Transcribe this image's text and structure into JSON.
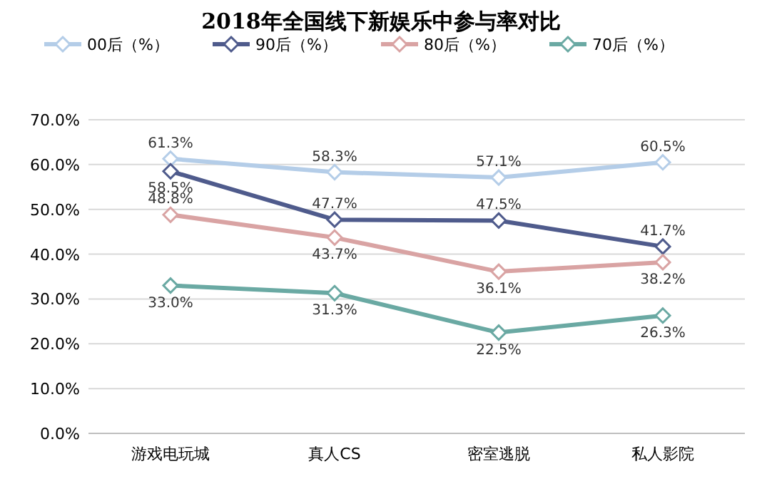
{
  "chart_data": {
    "type": "line",
    "title": "2018年全国线下新娱乐中参与率对比",
    "categories": [
      "游戏电玩城",
      "真人CS",
      "密室逃脱",
      "私人影院"
    ],
    "series": [
      {
        "name": "00后（%）",
        "color": "#b4cde8",
        "values": [
          61.3,
          58.3,
          57.1,
          60.5
        ],
        "value_labels": [
          "61.3%",
          "58.3%",
          "57.1%",
          "60.5%"
        ]
      },
      {
        "name": "90后（%）",
        "color": "#4f5b8c",
        "values": [
          58.5,
          47.7,
          47.5,
          41.7
        ],
        "value_labels": [
          "58.5%",
          "47.7%",
          "47.5%",
          "41.7%"
        ]
      },
      {
        "name": "80后（%）",
        "color": "#d9a3a3",
        "values": [
          48.8,
          43.7,
          36.1,
          38.2
        ],
        "value_labels": [
          "48.8%",
          "43.7%",
          "36.1%",
          "38.2%"
        ]
      },
      {
        "name": "70后（%）",
        "color": "#6aa9a3",
        "values": [
          33.0,
          31.3,
          22.5,
          26.3
        ],
        "value_labels": [
          "33.0%",
          "31.3%",
          "22.5%",
          "26.3%"
        ]
      }
    ],
    "ylim": [
      0,
      70
    ],
    "yticks": [
      {
        "value": 0,
        "label": "0.0%"
      },
      {
        "value": 10,
        "label": "10.0%"
      },
      {
        "value": 20,
        "label": "20.0%"
      },
      {
        "value": 30,
        "label": "30.0%"
      },
      {
        "value": 40,
        "label": "40.0%"
      },
      {
        "value": 50,
        "label": "50.0%"
      },
      {
        "value": 60,
        "label": "60.0%"
      },
      {
        "value": 70,
        "label": "70.0%"
      }
    ],
    "grid": "y",
    "legend": "top",
    "marker": "diamond",
    "line_style": "solid"
  }
}
